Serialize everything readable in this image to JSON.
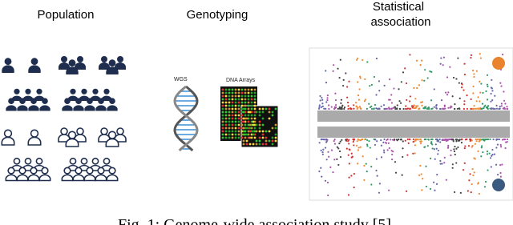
{
  "panels": [
    {
      "title": "Population"
    },
    {
      "title": "Genotyping",
      "labels": [
        "WGS",
        "DNA Arrays"
      ]
    },
    {
      "title_lines": [
        "Statistical",
        "association"
      ]
    }
  ],
  "caption": "Fig. 1: Genome-wide association study [5]."
}
